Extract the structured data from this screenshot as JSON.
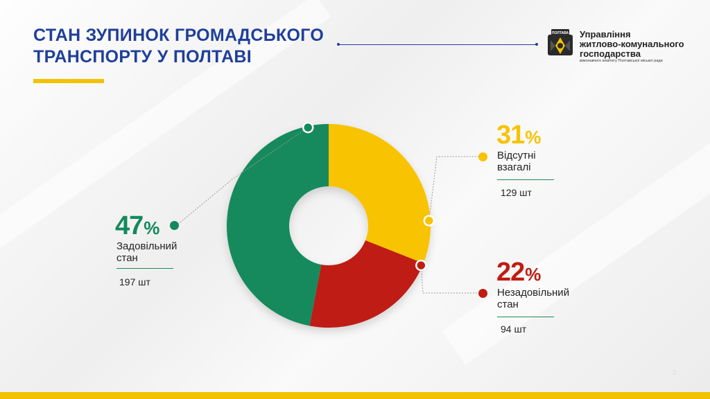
{
  "header": {
    "title_line1": "СТАН ЗУПИНОК ГРОМАДСЬКОГО",
    "title_line2": "ТРАНСПОРТУ У ПОЛТАВІ",
    "logo_badge": "ПОЛТАВА",
    "org_line1": "Управління",
    "org_line2": "житлово-комунального",
    "org_line3": "господарства",
    "org_sub": "виконавчого комітету Полтавської міської ради"
  },
  "chart_data": {
    "type": "pie",
    "donut": true,
    "title": "СТАН ЗУПИНОК ГРОМАДСЬКОГО ТРАНСПОРТУ У ПОЛТАВІ",
    "unit": "шт",
    "series": [
      {
        "name": "Задовільний стан",
        "line1": "Задовільний",
        "line2": "стан",
        "percent": 47,
        "count": 197,
        "count_label": "197 шт",
        "color": "#128a5c"
      },
      {
        "name": "Відсутні взагалі",
        "line1": "Відсутні",
        "line2": "взагалі",
        "percent": 31,
        "count": 129,
        "count_label": "129 шт",
        "color": "#f8c300"
      },
      {
        "name": "Незадовільний стан",
        "line1": "Незадовільний",
        "line2": "стан",
        "percent": 22,
        "count": 94,
        "count_label": "94 шт",
        "color": "#bf1c12"
      }
    ],
    "start_angle_deg": -90,
    "order_clockwise": [
      "Відсутні взагалі",
      "Незадовільний стан",
      "Задовільний стан"
    ]
  },
  "page": {
    "number": "2"
  },
  "colors": {
    "title": "#1f3f99",
    "accent": "#f2c200",
    "separator": "#1d8a5a"
  }
}
